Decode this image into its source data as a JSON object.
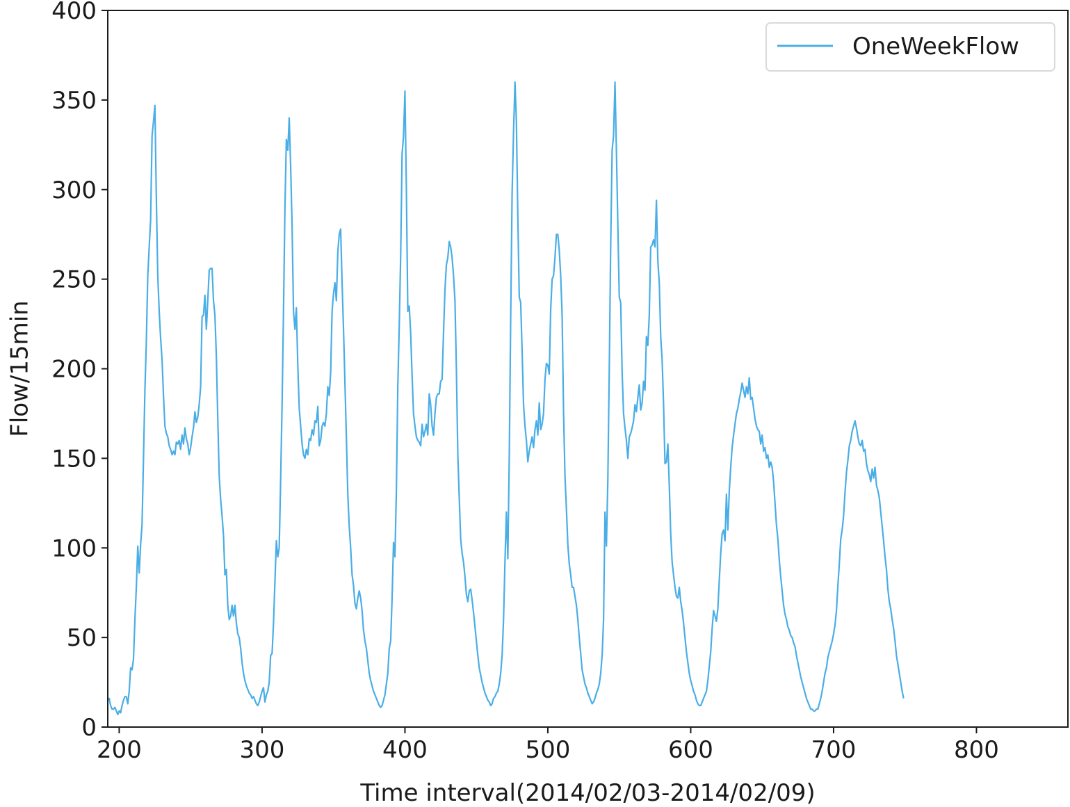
{
  "chart_data": {
    "type": "line",
    "title": "",
    "xlabel": "Time interval(2014/02/03-2014/02/09)",
    "ylabel": "Flow/15min",
    "xlim": [
      192,
      864
    ],
    "ylim": [
      0,
      400
    ],
    "x_ticks": [
      200,
      300,
      400,
      500,
      600,
      700,
      800
    ],
    "x_tick_labels": [
      "200",
      "300",
      "400",
      "500",
      "600",
      "700",
      "800"
    ],
    "y_ticks": [
      0,
      50,
      100,
      150,
      200,
      250,
      300,
      350,
      400
    ],
    "y_tick_labels": [
      "0",
      "50",
      "100",
      "150",
      "200",
      "250",
      "300",
      "350",
      "400"
    ],
    "grid": false,
    "legend_position": "top-right",
    "series": [
      {
        "name": "OneWeekFlow",
        "color": "#4aaee6",
        "x_start": 192,
        "x_step": 1,
        "values": [
          15,
          16,
          12,
          10,
          10,
          11,
          9,
          7,
          9,
          8,
          12,
          15,
          17,
          17,
          13,
          20,
          33,
          32,
          38,
          60,
          78,
          101,
          86,
          102,
          113,
          150,
          188,
          215,
          252,
          268,
          283,
          330,
          338,
          347,
          295,
          252,
          232,
          217,
          205,
          185,
          168,
          164,
          162,
          157,
          155,
          152,
          154,
          152,
          159,
          158,
          160,
          155,
          163,
          158,
          167,
          161,
          158,
          152,
          156,
          162,
          167,
          176,
          170,
          173,
          180,
          190,
          229,
          230,
          241,
          222,
          238,
          255,
          256,
          256,
          238,
          230,
          207,
          172,
          140,
          127,
          118,
          107,
          85,
          88,
          68,
          60,
          62,
          68,
          62,
          68,
          58,
          52,
          50,
          44,
          36,
          30,
          26,
          23,
          21,
          19,
          18,
          16,
          17,
          15,
          13,
          12,
          14,
          17,
          20,
          22,
          14,
          18,
          20,
          25,
          40,
          41,
          58,
          81,
          104,
          95,
          100,
          138,
          180,
          232,
          290,
          328,
          322,
          340,
          313,
          280,
          232,
          222,
          234,
          202,
          178,
          168,
          158,
          152,
          150,
          155,
          152,
          161,
          160,
          166,
          163,
          171,
          170,
          179,
          157,
          160,
          168,
          170,
          168,
          175,
          190,
          185,
          198,
          232,
          242,
          248,
          238,
          265,
          275,
          278,
          248,
          222,
          192,
          162,
          130,
          112,
          100,
          85,
          79,
          69,
          66,
          72,
          76,
          72,
          65,
          54,
          48,
          44,
          37,
          30,
          26,
          23,
          20,
          18,
          16,
          14,
          12,
          11,
          12,
          15,
          18,
          24,
          30,
          44,
          48,
          72,
          103,
          95,
          132,
          190,
          224,
          263,
          320,
          330,
          355,
          300,
          232,
          235,
          220,
          196,
          175,
          168,
          162,
          160,
          159,
          157,
          169,
          162,
          165,
          169,
          163,
          186,
          180,
          168,
          163,
          175,
          184,
          186,
          186,
          193,
          194,
          220,
          244,
          258,
          262,
          271,
          268,
          262,
          252,
          238,
          200,
          152,
          128,
          105,
          97,
          92,
          84,
          74,
          70,
          76,
          77,
          71,
          64,
          56,
          48,
          40,
          33,
          29,
          25,
          22,
          19,
          17,
          15,
          14,
          12,
          13,
          16,
          17,
          19,
          20,
          24,
          30,
          40,
          60,
          92,
          120,
          94,
          150,
          228,
          298,
          332,
          360,
          338,
          285,
          240,
          237,
          210,
          180,
          168,
          160,
          148,
          154,
          158,
          162,
          156,
          166,
          171,
          163,
          181,
          166,
          169,
          175,
          194,
          203,
          202,
          197,
          233,
          250,
          252,
          262,
          275,
          275,
          266,
          252,
          230,
          176,
          140,
          122,
          102,
          91,
          85,
          78,
          78,
          73,
          68,
          60,
          50,
          41,
          32,
          28,
          24,
          22,
          19,
          17,
          15,
          13,
          14,
          16,
          19,
          21,
          24,
          30,
          40,
          60,
          120,
          101,
          138,
          200,
          269,
          322,
          330,
          360,
          322,
          280,
          240,
          237,
          198,
          175,
          167,
          160,
          150,
          162,
          164,
          167,
          171,
          180,
          176,
          184,
          191,
          177,
          181,
          193,
          188,
          218,
          213,
          230,
          268,
          269,
          272,
          268,
          294,
          260,
          248,
          218,
          205,
          180,
          147,
          148,
          158,
          135,
          108,
          92,
          85,
          78,
          73,
          72,
          78,
          70,
          65,
          58,
          50,
          42,
          36,
          30,
          26,
          23,
          20,
          18,
          15,
          13,
          12,
          12,
          14,
          16,
          18,
          20,
          26,
          34,
          42,
          55,
          65,
          62,
          59,
          66,
          82,
          97,
          108,
          110,
          104,
          130,
          110,
          132,
          145,
          156,
          163,
          169,
          175,
          178,
          183,
          187,
          192,
          188,
          184,
          190,
          186,
          195,
          183,
          184,
          178,
          172,
          168,
          166,
          165,
          158,
          163,
          154,
          156,
          150,
          152,
          145,
          148,
          145,
          137,
          125,
          113,
          105,
          93,
          84,
          76,
          68,
          63,
          60,
          56,
          54,
          51,
          50,
          47,
          45,
          40,
          36,
          32,
          28,
          25,
          22,
          19,
          16,
          14,
          12,
          10,
          10,
          9,
          9,
          10,
          10,
          13,
          16,
          20,
          25,
          30,
          33,
          39,
          42,
          45,
          48,
          52,
          57,
          65,
          79,
          91,
          105,
          110,
          118,
          131,
          142,
          149,
          157,
          160,
          165,
          168,
          171,
          167,
          162,
          158,
          157,
          160,
          154,
          155,
          147,
          143,
          141,
          137,
          144,
          139,
          145,
          135,
          132,
          128,
          120,
          112,
          104,
          95,
          88,
          77,
          70,
          66,
          60,
          55,
          48,
          40,
          35,
          30,
          25,
          20,
          16
        ]
      }
    ]
  }
}
